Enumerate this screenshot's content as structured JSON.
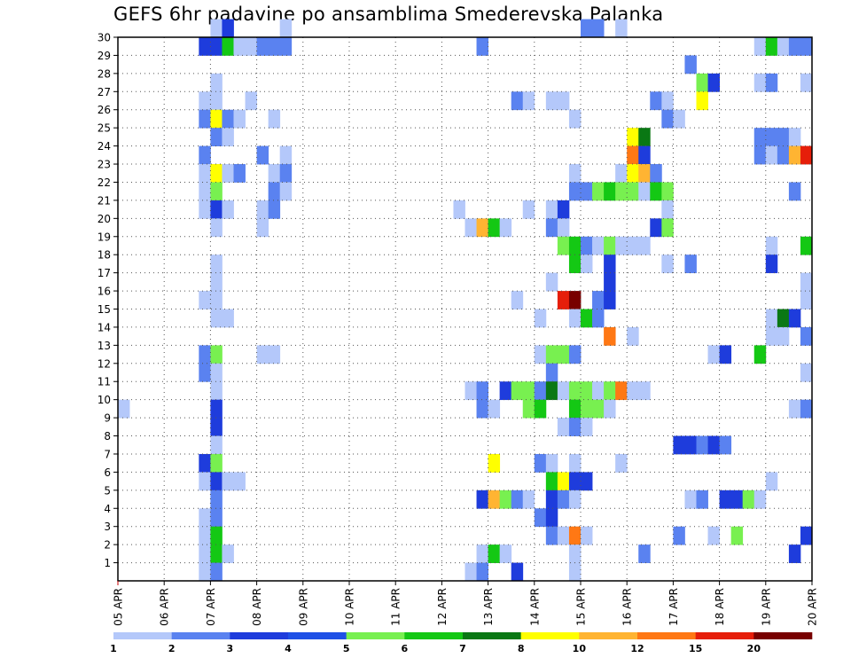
{
  "chart_data": {
    "type": "heatmap",
    "title": "GEFS 6hr padavine po ansamblima Smederevska Palanka",
    "xlabel": "",
    "ylabel": "",
    "x_ticks": [
      "05 APR",
      "06 APR",
      "07 APR",
      "08 APR",
      "09 APR",
      "10 APR",
      "11 APR",
      "12 APR",
      "13 APR",
      "14 APR",
      "15 APR",
      "16 APR",
      "17 APR",
      "18 APR",
      "19 APR",
      "20 APR"
    ],
    "x_range": [
      0,
      60
    ],
    "y_ticks": [
      1,
      2,
      3,
      4,
      5,
      6,
      7,
      8,
      9,
      10,
      11,
      12,
      13,
      14,
      15,
      16,
      17,
      18,
      19,
      20,
      21,
      22,
      23,
      24,
      25,
      26,
      27,
      28,
      29,
      30
    ],
    "y_range": [
      0,
      30
    ],
    "grid": true,
    "legend_position": "bottom",
    "levels": [
      "1",
      "2",
      "3",
      "4",
      "5",
      "6",
      "7",
      "8",
      "10",
      "12",
      "15",
      "20"
    ],
    "colors": [
      "#b4c8fa",
      "#5a82f0",
      "#1e3cdc",
      "#1e50e6",
      "#78f050",
      "#14c814",
      "#0a7814",
      "#ffff00",
      "#ffb432",
      "#ff7814",
      "#e61e0a",
      "#780000"
    ],
    "cells": [
      [
        8,
        30,
        1
      ],
      [
        9,
        30,
        3
      ],
      [
        14,
        30,
        1
      ],
      [
        40,
        30,
        2
      ],
      [
        41,
        30,
        2
      ],
      [
        43,
        30,
        1
      ],
      [
        7,
        29,
        3
      ],
      [
        8,
        29,
        3
      ],
      [
        9,
        29,
        6
      ],
      [
        10,
        29,
        1
      ],
      [
        11,
        29,
        1
      ],
      [
        12,
        29,
        2
      ],
      [
        13,
        29,
        2
      ],
      [
        14,
        29,
        2
      ],
      [
        31,
        29,
        2
      ],
      [
        55,
        29,
        1
      ],
      [
        56,
        29,
        6
      ],
      [
        57,
        29,
        1
      ],
      [
        58,
        29,
        2
      ],
      [
        59,
        29,
        2
      ],
      [
        49,
        28,
        2
      ],
      [
        8,
        27,
        1
      ],
      [
        50,
        27,
        5
      ],
      [
        51,
        27,
        3
      ],
      [
        55,
        27,
        1
      ],
      [
        56,
        27,
        2
      ],
      [
        59,
        27,
        1
      ],
      [
        7,
        26,
        1
      ],
      [
        8,
        26,
        1
      ],
      [
        11,
        26,
        1
      ],
      [
        34,
        26,
        2
      ],
      [
        35,
        26,
        1
      ],
      [
        37,
        26,
        1
      ],
      [
        38,
        26,
        1
      ],
      [
        46,
        26,
        2
      ],
      [
        47,
        26,
        1
      ],
      [
        50,
        26,
        8
      ],
      [
        7,
        25,
        2
      ],
      [
        8,
        25,
        8
      ],
      [
        9,
        25,
        2
      ],
      [
        10,
        25,
        1
      ],
      [
        13,
        25,
        1
      ],
      [
        39,
        25,
        1
      ],
      [
        47,
        25,
        2
      ],
      [
        48,
        25,
        1
      ],
      [
        8,
        24,
        2
      ],
      [
        9,
        24,
        1
      ],
      [
        44,
        24,
        8
      ],
      [
        45,
        24,
        7
      ],
      [
        55,
        24,
        2
      ],
      [
        56,
        24,
        2
      ],
      [
        57,
        24,
        2
      ],
      [
        58,
        24,
        1
      ],
      [
        7,
        23,
        2
      ],
      [
        12,
        23,
        2
      ],
      [
        14,
        23,
        1
      ],
      [
        44,
        23,
        10
      ],
      [
        45,
        23,
        3
      ],
      [
        55,
        23,
        2
      ],
      [
        56,
        23,
        1
      ],
      [
        57,
        23,
        2
      ],
      [
        58,
        23,
        9
      ],
      [
        59,
        23,
        11
      ],
      [
        7,
        22,
        1
      ],
      [
        8,
        22,
        8
      ],
      [
        9,
        22,
        1
      ],
      [
        10,
        22,
        2
      ],
      [
        13,
        22,
        1
      ],
      [
        14,
        22,
        2
      ],
      [
        39,
        22,
        1
      ],
      [
        43,
        22,
        1
      ],
      [
        44,
        22,
        8
      ],
      [
        45,
        22,
        9
      ],
      [
        46,
        22,
        2
      ],
      [
        7,
        21,
        1
      ],
      [
        8,
        21,
        5
      ],
      [
        13,
        21,
        2
      ],
      [
        14,
        21,
        1
      ],
      [
        39,
        21,
        2
      ],
      [
        40,
        21,
        2
      ],
      [
        41,
        21,
        5
      ],
      [
        42,
        21,
        6
      ],
      [
        43,
        21,
        5
      ],
      [
        44,
        21,
        5
      ],
      [
        45,
        21,
        1
      ],
      [
        46,
        21,
        6
      ],
      [
        47,
        21,
        5
      ],
      [
        58,
        21,
        2
      ],
      [
        7,
        20,
        1
      ],
      [
        8,
        20,
        3
      ],
      [
        9,
        20,
        1
      ],
      [
        12,
        20,
        1
      ],
      [
        13,
        20,
        2
      ],
      [
        29,
        20,
        1
      ],
      [
        35,
        20,
        1
      ],
      [
        37,
        20,
        1
      ],
      [
        38,
        20,
        3
      ],
      [
        47,
        20,
        1
      ],
      [
        8,
        19,
        1
      ],
      [
        12,
        19,
        1
      ],
      [
        30,
        19,
        1
      ],
      [
        31,
        19,
        9
      ],
      [
        32,
        19,
        6
      ],
      [
        33,
        19,
        1
      ],
      [
        37,
        19,
        2
      ],
      [
        38,
        19,
        1
      ],
      [
        46,
        19,
        3
      ],
      [
        47,
        19,
        5
      ],
      [
        38,
        18,
        5
      ],
      [
        39,
        18,
        6
      ],
      [
        40,
        18,
        2
      ],
      [
        41,
        18,
        1
      ],
      [
        42,
        18,
        5
      ],
      [
        43,
        18,
        1
      ],
      [
        44,
        18,
        1
      ],
      [
        45,
        18,
        1
      ],
      [
        56,
        18,
        1
      ],
      [
        59,
        18,
        6
      ],
      [
        8,
        17,
        1
      ],
      [
        39,
        17,
        6
      ],
      [
        40,
        17,
        1
      ],
      [
        42,
        17,
        3
      ],
      [
        47,
        17,
        1
      ],
      [
        49,
        17,
        2
      ],
      [
        56,
        17,
        3
      ],
      [
        8,
        16,
        1
      ],
      [
        37,
        16,
        1
      ],
      [
        42,
        16,
        3
      ],
      [
        59,
        16,
        1
      ],
      [
        7,
        15,
        1
      ],
      [
        8,
        15,
        1
      ],
      [
        34,
        15,
        1
      ],
      [
        38,
        15,
        11
      ],
      [
        39,
        15,
        12
      ],
      [
        41,
        15,
        2
      ],
      [
        42,
        15,
        3
      ],
      [
        59,
        15,
        1
      ],
      [
        8,
        14,
        1
      ],
      [
        9,
        14,
        1
      ],
      [
        36,
        14,
        1
      ],
      [
        39,
        14,
        1
      ],
      [
        40,
        14,
        6
      ],
      [
        41,
        14,
        2
      ],
      [
        56,
        14,
        1
      ],
      [
        57,
        14,
        7
      ],
      [
        58,
        14,
        3
      ],
      [
        42,
        13,
        10
      ],
      [
        44,
        13,
        1
      ],
      [
        56,
        13,
        1
      ],
      [
        57,
        13,
        1
      ],
      [
        59,
        13,
        2
      ],
      [
        7,
        12,
        2
      ],
      [
        8,
        12,
        5
      ],
      [
        12,
        12,
        1
      ],
      [
        13,
        12,
        1
      ],
      [
        36,
        12,
        1
      ],
      [
        37,
        12,
        5
      ],
      [
        38,
        12,
        5
      ],
      [
        39,
        12,
        2
      ],
      [
        51,
        12,
        1
      ],
      [
        52,
        12,
        3
      ],
      [
        55,
        12,
        6
      ],
      [
        7,
        11,
        2
      ],
      [
        8,
        11,
        1
      ],
      [
        37,
        11,
        2
      ],
      [
        59,
        11,
        1
      ],
      [
        8,
        10,
        1
      ],
      [
        30,
        10,
        1
      ],
      [
        31,
        10,
        2
      ],
      [
        33,
        10,
        3
      ],
      [
        34,
        10,
        5
      ],
      [
        35,
        10,
        5
      ],
      [
        36,
        10,
        2
      ],
      [
        37,
        10,
        7
      ],
      [
        38,
        10,
        1
      ],
      [
        39,
        10,
        5
      ],
      [
        40,
        10,
        5
      ],
      [
        41,
        10,
        1
      ],
      [
        42,
        10,
        5
      ],
      [
        43,
        10,
        10
      ],
      [
        44,
        10,
        1
      ],
      [
        45,
        10,
        1
      ],
      [
        0,
        9,
        1
      ],
      [
        8,
        9,
        3
      ],
      [
        31,
        9,
        2
      ],
      [
        32,
        9,
        1
      ],
      [
        35,
        9,
        5
      ],
      [
        36,
        9,
        6
      ],
      [
        39,
        9,
        6
      ],
      [
        40,
        9,
        5
      ],
      [
        41,
        9,
        5
      ],
      [
        42,
        9,
        1
      ],
      [
        58,
        9,
        1
      ],
      [
        59,
        9,
        2
      ],
      [
        8,
        8,
        3
      ],
      [
        38,
        8,
        1
      ],
      [
        39,
        8,
        2
      ],
      [
        40,
        8,
        1
      ],
      [
        8,
        7,
        1
      ],
      [
        48,
        7,
        3
      ],
      [
        49,
        7,
        3
      ],
      [
        50,
        7,
        2
      ],
      [
        51,
        7,
        3
      ],
      [
        52,
        7,
        2
      ],
      [
        7,
        6,
        3
      ],
      [
        8,
        6,
        5
      ],
      [
        32,
        6,
        8
      ],
      [
        36,
        6,
        2
      ],
      [
        37,
        6,
        1
      ],
      [
        39,
        6,
        1
      ],
      [
        43,
        6,
        1
      ],
      [
        7,
        5,
        1
      ],
      [
        8,
        5,
        3
      ],
      [
        9,
        5,
        1
      ],
      [
        10,
        5,
        1
      ],
      [
        37,
        5,
        6
      ],
      [
        38,
        5,
        8
      ],
      [
        39,
        5,
        3
      ],
      [
        40,
        5,
        3
      ],
      [
        56,
        5,
        1
      ],
      [
        8,
        4,
        2
      ],
      [
        31,
        4,
        3
      ],
      [
        32,
        4,
        9
      ],
      [
        33,
        4,
        5
      ],
      [
        34,
        4,
        2
      ],
      [
        35,
        4,
        1
      ],
      [
        37,
        4,
        3
      ],
      [
        38,
        4,
        2
      ],
      [
        39,
        4,
        1
      ],
      [
        49,
        4,
        1
      ],
      [
        50,
        4,
        2
      ],
      [
        52,
        4,
        3
      ],
      [
        53,
        4,
        3
      ],
      [
        54,
        4,
        5
      ],
      [
        55,
        4,
        1
      ],
      [
        7,
        3,
        1
      ],
      [
        8,
        3,
        2
      ],
      [
        36,
        3,
        2
      ],
      [
        37,
        3,
        3
      ],
      [
        7,
        2,
        1
      ],
      [
        8,
        2,
        6
      ],
      [
        37,
        2,
        2
      ],
      [
        38,
        2,
        1
      ],
      [
        39,
        2,
        10
      ],
      [
        40,
        2,
        1
      ],
      [
        48,
        2,
        2
      ],
      [
        51,
        2,
        1
      ],
      [
        53,
        2,
        5
      ],
      [
        59,
        2,
        3
      ],
      [
        7,
        1,
        1
      ],
      [
        8,
        1,
        6
      ],
      [
        9,
        1,
        1
      ],
      [
        31,
        1,
        1
      ],
      [
        32,
        1,
        6
      ],
      [
        33,
        1,
        1
      ],
      [
        39,
        1,
        1
      ],
      [
        45,
        1,
        2
      ],
      [
        58,
        1,
        3
      ],
      [
        7,
        0,
        1
      ],
      [
        8,
        0,
        2
      ],
      [
        30,
        0,
        1
      ],
      [
        31,
        0,
        2
      ],
      [
        34,
        0,
        3
      ],
      [
        39,
        0,
        1
      ]
    ]
  }
}
